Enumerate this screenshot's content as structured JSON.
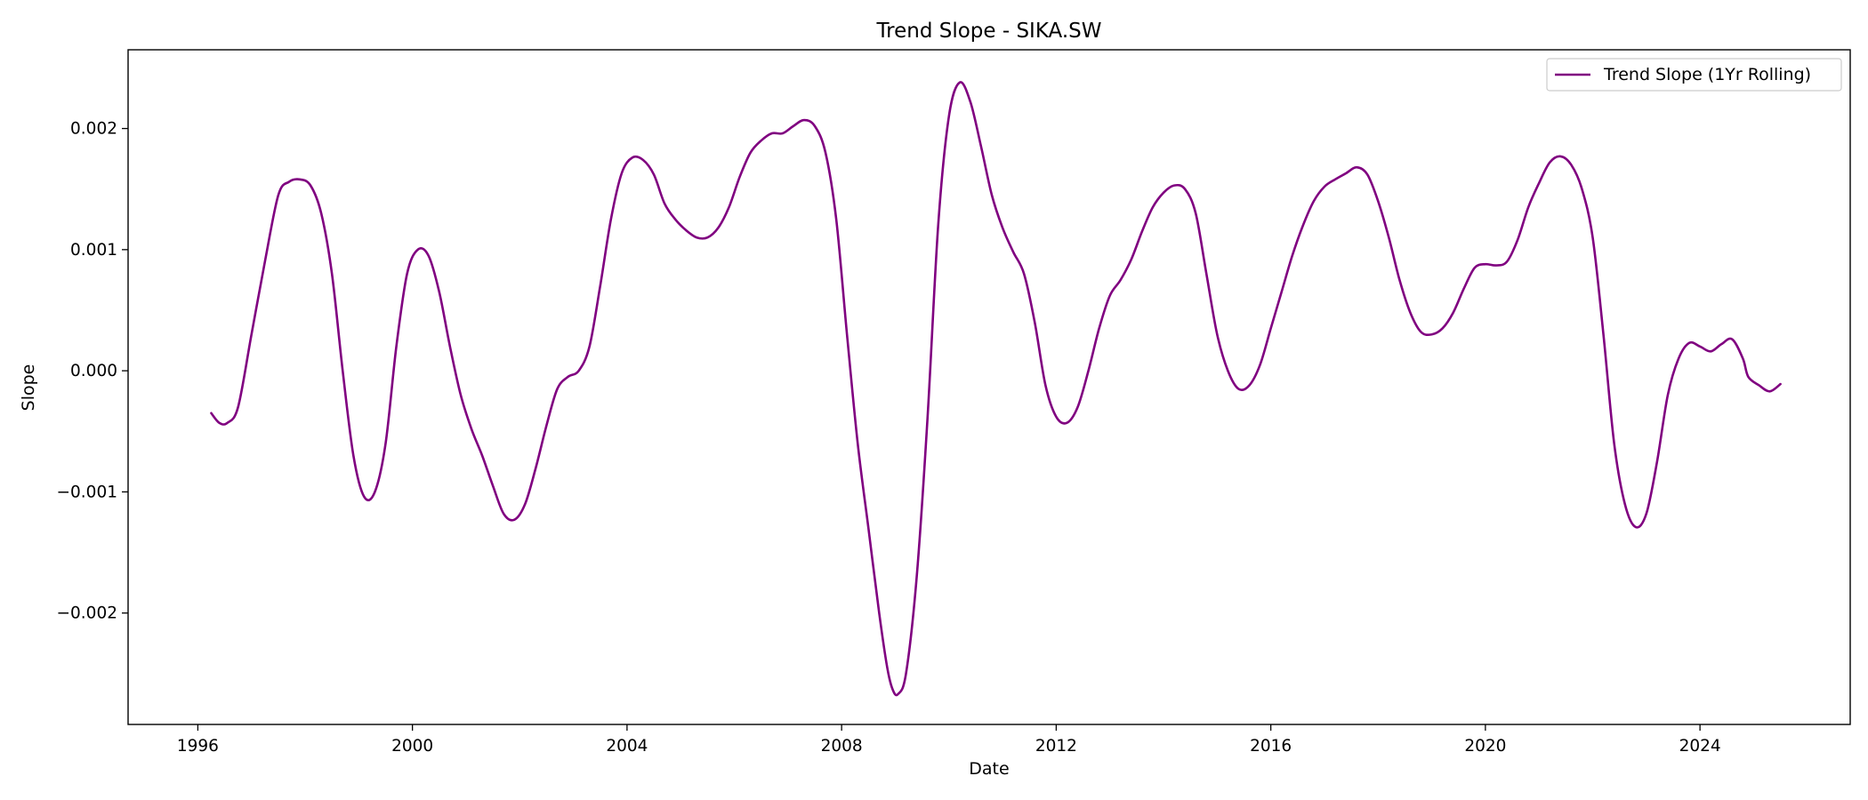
{
  "chart_data": {
    "type": "line",
    "title": "Trend Slope - SIKA.SW",
    "xlabel": "Date",
    "ylabel": "Slope",
    "xlim": [
      1994.7,
      2026.8
    ],
    "ylim": [
      -0.00292,
      0.00265
    ],
    "x_ticks": [
      1996,
      2000,
      2004,
      2008,
      2012,
      2016,
      2020,
      2024
    ],
    "x_tick_labels": [
      "1996",
      "2000",
      "2004",
      "2008",
      "2012",
      "2016",
      "2020",
      "2024"
    ],
    "y_ticks": [
      -0.002,
      -0.001,
      0.0,
      0.001,
      0.002
    ],
    "y_tick_labels": [
      "−0.002",
      "−0.001",
      "0.000",
      "0.001",
      "0.002"
    ],
    "grid": false,
    "legend_position": "top-right",
    "series": [
      {
        "name": "Trend Slope (1Yr Rolling)",
        "color": "#800080",
        "points": [
          [
            1996.25,
            -0.00035
          ],
          [
            1996.4,
            -0.00043
          ],
          [
            1996.55,
            -0.00043
          ],
          [
            1996.75,
            -0.0003
          ],
          [
            1997.0,
            0.0003
          ],
          [
            1997.25,
            0.0009
          ],
          [
            1997.5,
            0.00145
          ],
          [
            1997.7,
            0.00156
          ],
          [
            1997.9,
            0.00158
          ],
          [
            1998.1,
            0.00153
          ],
          [
            1998.3,
            0.0013
          ],
          [
            1998.5,
            0.0008
          ],
          [
            1998.7,
            0.0
          ],
          [
            1998.9,
            -0.0007
          ],
          [
            1999.1,
            -0.00104
          ],
          [
            1999.3,
            -0.001
          ],
          [
            1999.5,
            -0.0006
          ],
          [
            1999.7,
            0.0002
          ],
          [
            1999.9,
            0.0008
          ],
          [
            2000.1,
            0.001
          ],
          [
            2000.3,
            0.00095
          ],
          [
            2000.5,
            0.00065
          ],
          [
            2000.7,
            0.0002
          ],
          [
            2000.9,
            -0.0002
          ],
          [
            2001.1,
            -0.00048
          ],
          [
            2001.3,
            -0.0007
          ],
          [
            2001.5,
            -0.00095
          ],
          [
            2001.7,
            -0.00118
          ],
          [
            2001.9,
            -0.00123
          ],
          [
            2002.1,
            -0.0011
          ],
          [
            2002.3,
            -0.0008
          ],
          [
            2002.5,
            -0.00045
          ],
          [
            2002.7,
            -0.00015
          ],
          [
            2002.9,
            -5e-05
          ],
          [
            2003.1,
            0.0
          ],
          [
            2003.3,
            0.0002
          ],
          [
            2003.5,
            0.0007
          ],
          [
            2003.7,
            0.00125
          ],
          [
            2003.9,
            0.00163
          ],
          [
            2004.1,
            0.00176
          ],
          [
            2004.3,
            0.00174
          ],
          [
            2004.5,
            0.00162
          ],
          [
            2004.7,
            0.00138
          ],
          [
            2004.9,
            0.00125
          ],
          [
            2005.1,
            0.00116
          ],
          [
            2005.3,
            0.0011
          ],
          [
            2005.5,
            0.0011
          ],
          [
            2005.7,
            0.00118
          ],
          [
            2005.9,
            0.00135
          ],
          [
            2006.1,
            0.0016
          ],
          [
            2006.3,
            0.0018
          ],
          [
            2006.5,
            0.0019
          ],
          [
            2006.7,
            0.00196
          ],
          [
            2006.9,
            0.00196
          ],
          [
            2007.1,
            0.00202
          ],
          [
            2007.3,
            0.00207
          ],
          [
            2007.5,
            0.00202
          ],
          [
            2007.7,
            0.0018
          ],
          [
            2007.9,
            0.00125
          ],
          [
            2008.1,
            0.0003
          ],
          [
            2008.3,
            -0.0006
          ],
          [
            2008.5,
            -0.0013
          ],
          [
            2008.7,
            -0.002
          ],
          [
            2008.85,
            -0.00245
          ],
          [
            2008.95,
            -0.00263
          ],
          [
            2009.05,
            -0.00267
          ],
          [
            2009.2,
            -0.0025
          ],
          [
            2009.4,
            -0.0017
          ],
          [
            2009.6,
            -0.0004
          ],
          [
            2009.8,
            0.0012
          ],
          [
            2010.0,
            0.0021
          ],
          [
            2010.2,
            0.00238
          ],
          [
            2010.4,
            0.00222
          ],
          [
            2010.6,
            0.00185
          ],
          [
            2010.8,
            0.00145
          ],
          [
            2011.0,
            0.00118
          ],
          [
            2011.2,
            0.00098
          ],
          [
            2011.4,
            0.0008
          ],
          [
            2011.6,
            0.0004
          ],
          [
            2011.8,
            -0.00012
          ],
          [
            2012.0,
            -0.00038
          ],
          [
            2012.2,
            -0.00043
          ],
          [
            2012.4,
            -0.0003
          ],
          [
            2012.6,
            0.0
          ],
          [
            2012.8,
            0.00035
          ],
          [
            2013.0,
            0.00062
          ],
          [
            2013.2,
            0.00075
          ],
          [
            2013.4,
            0.00092
          ],
          [
            2013.6,
            0.00115
          ],
          [
            2013.8,
            0.00135
          ],
          [
            2014.0,
            0.00147
          ],
          [
            2014.2,
            0.00153
          ],
          [
            2014.4,
            0.0015
          ],
          [
            2014.6,
            0.0013
          ],
          [
            2014.8,
            0.0008
          ],
          [
            2015.0,
            0.0003
          ],
          [
            2015.2,
            0.0
          ],
          [
            2015.4,
            -0.00015
          ],
          [
            2015.6,
            -0.00012
          ],
          [
            2015.8,
            5e-05
          ],
          [
            2016.0,
            0.00035
          ],
          [
            2016.2,
            0.00065
          ],
          [
            2016.4,
            0.00095
          ],
          [
            2016.6,
            0.0012
          ],
          [
            2016.8,
            0.0014
          ],
          [
            2017.0,
            0.00152
          ],
          [
            2017.2,
            0.00158
          ],
          [
            2017.4,
            0.00163
          ],
          [
            2017.6,
            0.00168
          ],
          [
            2017.8,
            0.00162
          ],
          [
            2018.0,
            0.0014
          ],
          [
            2018.2,
            0.0011
          ],
          [
            2018.4,
            0.00075
          ],
          [
            2018.6,
            0.00048
          ],
          [
            2018.8,
            0.00032
          ],
          [
            2019.0,
            0.0003
          ],
          [
            2019.2,
            0.00035
          ],
          [
            2019.4,
            0.00048
          ],
          [
            2019.6,
            0.00068
          ],
          [
            2019.8,
            0.00085
          ],
          [
            2020.0,
            0.00088
          ],
          [
            2020.2,
            0.00087
          ],
          [
            2020.4,
            0.0009
          ],
          [
            2020.6,
            0.00108
          ],
          [
            2020.8,
            0.00135
          ],
          [
            2021.0,
            0.00155
          ],
          [
            2021.2,
            0.00172
          ],
          [
            2021.4,
            0.00177
          ],
          [
            2021.6,
            0.0017
          ],
          [
            2021.8,
            0.0015
          ],
          [
            2022.0,
            0.0011
          ],
          [
            2022.2,
            0.0003
          ],
          [
            2022.4,
            -0.0006
          ],
          [
            2022.6,
            -0.0011
          ],
          [
            2022.8,
            -0.00129
          ],
          [
            2023.0,
            -0.00118
          ],
          [
            2023.2,
            -0.00075
          ],
          [
            2023.4,
            -0.0002
          ],
          [
            2023.6,
            0.0001
          ],
          [
            2023.8,
            0.00023
          ],
          [
            2024.0,
            0.0002
          ],
          [
            2024.2,
            0.00016
          ],
          [
            2024.4,
            0.00022
          ],
          [
            2024.6,
            0.00026
          ],
          [
            2024.8,
            0.0001
          ],
          [
            2024.9,
            -5e-05
          ],
          [
            2025.1,
            -0.00012
          ],
          [
            2025.3,
            -0.00017
          ],
          [
            2025.5,
            -0.00011
          ]
        ]
      }
    ]
  }
}
